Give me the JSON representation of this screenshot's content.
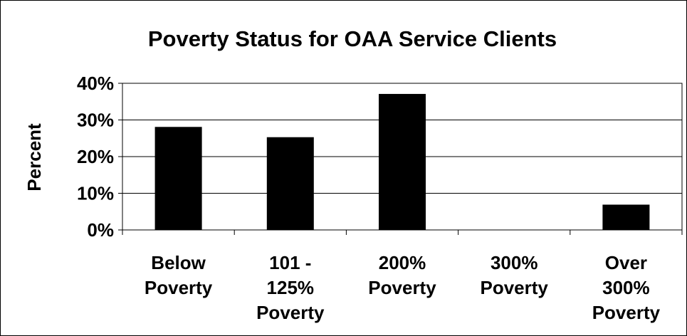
{
  "chart_data": {
    "type": "bar",
    "title": "Poverty Status for OAA Service Clients",
    "ylabel": "Percent",
    "xlabel": "",
    "categories": [
      [
        "Below",
        "Poverty"
      ],
      [
        "101 -",
        "125%",
        "Poverty"
      ],
      [
        "200%",
        "Poverty"
      ],
      [
        "300%",
        "Poverty"
      ],
      [
        "Over",
        "300%",
        "Poverty"
      ]
    ],
    "values": [
      28,
      25.2,
      37,
      0,
      6.8
    ],
    "ylim": [
      0,
      40
    ],
    "yticks": [
      "0%",
      "10%",
      "20%",
      "30%",
      "40%"
    ],
    "ytick_values": [
      0,
      10,
      20,
      30,
      40
    ],
    "grid": true,
    "legend": "none",
    "bar_color": "#000000"
  }
}
